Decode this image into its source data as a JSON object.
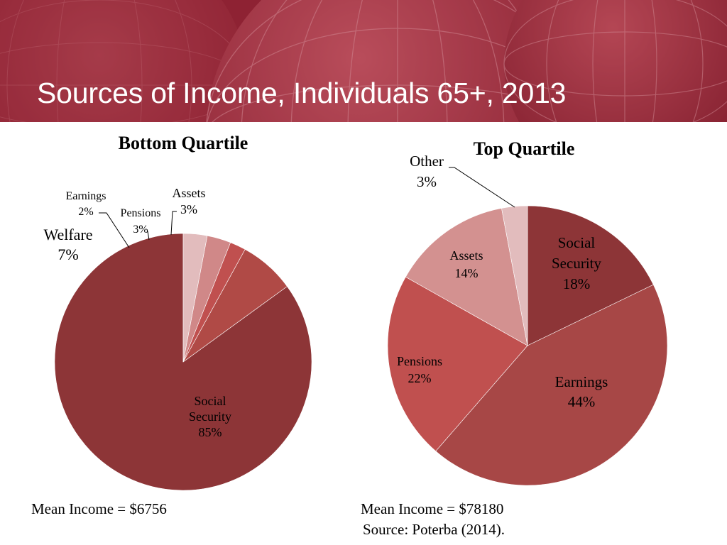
{
  "slide": {
    "title": "Sources of Income, Individuals 65+, 2013"
  },
  "colors": {
    "header_bg": "#8e2233",
    "social_security": "#8d3537",
    "earnings": "#a74746",
    "pensions": "#c0504f",
    "welfare": "#b34b45",
    "assets_bottom": "#d69897",
    "assets_top": "#d39190",
    "other": "#e2bcbd"
  },
  "chart_data": [
    {
      "type": "pie",
      "title": "Bottom Quartile",
      "slices": [
        {
          "label": "Social Security",
          "value": 85,
          "pct_label": "85%"
        },
        {
          "label": "Welfare",
          "value": 7,
          "pct_label": "7%"
        },
        {
          "label": "Earnings",
          "value": 2,
          "pct_label": "2%"
        },
        {
          "label": "Pensions",
          "value": 3,
          "pct_label": "3%"
        },
        {
          "label": "Assets",
          "value": 3,
          "pct_label": "3%"
        }
      ],
      "footer": "Mean Income = $6756"
    },
    {
      "type": "pie",
      "title": "Top Quartile",
      "slices": [
        {
          "label": "Social Security",
          "value": 18,
          "pct_label": "18%"
        },
        {
          "label": "Earnings",
          "value": 44,
          "pct_label": "44%"
        },
        {
          "label": "Pensions",
          "value": 22,
          "pct_label": "22%"
        },
        {
          "label": "Assets",
          "value": 14,
          "pct_label": "14%"
        },
        {
          "label": "Other",
          "value": 3,
          "pct_label": "3%"
        }
      ],
      "footer": "Mean Income = $78180",
      "source": "Source: Poterba (2014)."
    }
  ]
}
